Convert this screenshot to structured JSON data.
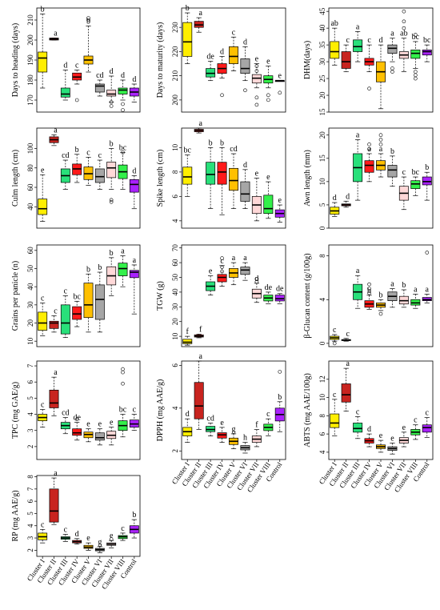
{
  "clusters": [
    "Cluster I",
    "Cluster II",
    "Cluster III",
    "Cluster IV",
    "Cluster V",
    "Cluster VI",
    "Cluster VII",
    "Cluster VIII",
    "Control"
  ],
  "colors": [
    "#ffee00",
    "#c8241f",
    "#28e07a",
    "#ff1a1a",
    "#ffc000",
    "#a6a6a6",
    "#ffd8d8",
    "#33f04a",
    "#aa22ff"
  ],
  "chart_data": [
    {
      "type": "box",
      "ylabel": "Days to heading (days)",
      "ylim": [
        164,
        216
      ],
      "ticks": [
        170,
        180,
        190,
        200,
        210
      ],
      "letters": [
        "b",
        "a",
        "d",
        "c",
        "b",
        "cd",
        "d",
        "d",
        "d"
      ],
      "boxes": [
        [
          176,
          184,
          191,
          194,
          213
        ],
        [
          200,
          200,
          200.5,
          201,
          201
        ],
        [
          170,
          171.5,
          173,
          176,
          185
        ],
        [
          178,
          180,
          181.5,
          183.5,
          185
        ],
        [
          184,
          188,
          190,
          192,
          207
        ],
        [
          172,
          174,
          177,
          178,
          180
        ],
        [
          169,
          172,
          173,
          175,
          182
        ],
        [
          170,
          173,
          175,
          176,
          180
        ],
        [
          169,
          172,
          174,
          176,
          178
        ]
      ],
      "outliers": [
        [],
        [],
        [],
        [
          170
        ],
        [
          210,
          211
        ],
        [],
        [
          167,
          169
        ],
        [
          165,
          168
        ],
        []
      ]
    },
    {
      "type": "box",
      "ylabel": "Days to maturity (days)",
      "ylim": [
        195,
        238
      ],
      "ticks": [
        200,
        210,
        220,
        230
      ],
      "letters": [
        "b",
        "a",
        "de",
        "d",
        "c",
        "d",
        "e",
        "e",
        "e"
      ],
      "boxes": [
        [
          215,
          218,
          224,
          232,
          236
        ],
        [
          228,
          230,
          231,
          232.5,
          234
        ],
        [
          208,
          209.5,
          211,
          213,
          216
        ],
        [
          209,
          211,
          213,
          215,
          218
        ],
        [
          212,
          215,
          218,
          222,
          226
        ],
        [
          208,
          211,
          213,
          217,
          222
        ],
        [
          205,
          207,
          209,
          210.5,
          215
        ],
        [
          205,
          207,
          208.5,
          210,
          214
        ],
        [
          208,
          208,
          208,
          208,
          208
        ]
      ],
      "outliers": [
        [],
        [],
        [],
        [
          202
        ],
        [],
        [
          204
        ],
        [
          198,
          201,
          212,
          214
        ],
        [
          200,
          202
        ],
        [
          203
        ]
      ]
    },
    {
      "type": "box",
      "ylabel": "DHM(days)",
      "ylim": [
        15,
        46
      ],
      "ticks": [
        15,
        20,
        25,
        30,
        35,
        40,
        45
      ],
      "letters": [
        "ab",
        "c",
        "a",
        "c",
        "d",
        "a",
        "ab",
        "bc",
        "bc"
      ],
      "boxes": [
        [
          29,
          31,
          33,
          36,
          40
        ],
        [
          27,
          28,
          30,
          33,
          35
        ],
        [
          30,
          33,
          34.5,
          36.5,
          39
        ],
        [
          27,
          29,
          30,
          31,
          35
        ],
        [
          16,
          24,
          27,
          30,
          35
        ],
        [
          30,
          32.5,
          34,
          35,
          37
        ],
        [
          27,
          31,
          32,
          33,
          37
        ],
        [
          28,
          31,
          32.5,
          33.5,
          36
        ],
        [
          30,
          32,
          33,
          33.5,
          35
        ]
      ],
      "outliers": [
        [],
        [],
        [],
        [
          22
        ],
        [],
        [
          27,
          28
        ],
        [
          40,
          42,
          45
        ],
        [
          25,
          26,
          27,
          38
        ],
        []
      ]
    },
    {
      "type": "box",
      "ylabel": "Culm length (cm)",
      "ylim": [
        18,
        121
      ],
      "ticks": [
        40,
        60,
        80,
        100
      ],
      "letters": [
        "e",
        "a",
        "cd",
        "b",
        "c",
        "c",
        "b",
        "bc",
        "d"
      ],
      "boxes": [
        [
          25,
          32,
          38,
          48,
          73
        ],
        [
          103,
          106,
          109,
          112,
          114
        ],
        [
          58,
          65,
          72,
          79,
          88
        ],
        [
          65,
          73,
          79,
          84,
          94
        ],
        [
          62,
          68,
          74,
          81,
          91
        ],
        [
          58,
          65,
          71,
          79,
          88
        ],
        [
          58,
          70,
          80,
          86,
          100
        ],
        [
          58,
          69,
          76,
          83,
          96
        ],
        [
          38,
          55,
          63,
          68,
          72
        ]
      ],
      "outliers": [
        [],
        [],
        [],
        [],
        [],
        [],
        [
          45,
          47
        ],
        [
          96
        ],
        []
      ]
    },
    {
      "type": "box",
      "ylabel": "Spike length (cm)",
      "ylim": [
        3.4,
        11.6
      ],
      "ticks": [
        4,
        6,
        8,
        10
      ],
      "letters": [
        "bc",
        "a",
        "b",
        "b",
        "cd",
        "d",
        "e",
        "e",
        "e"
      ],
      "boxes": [
        [
          6,
          7,
          7.6,
          8.4,
          9.4
        ],
        [
          11.2,
          11.3,
          11.4,
          11.5,
          11.6
        ],
        [
          5,
          7,
          7.8,
          8.8,
          10
        ],
        [
          4.5,
          7,
          8,
          8.8,
          10
        ],
        [
          5,
          6.5,
          7.3,
          8.3,
          9.5
        ],
        [
          5,
          5.6,
          6.2,
          7.2,
          8.2
        ],
        [
          4,
          4.6,
          5.3,
          6,
          7.5
        ],
        [
          4.2,
          4.6,
          5,
          6.1,
          7.2
        ],
        [
          3.9,
          4.3,
          4.6,
          4.9,
          5.3
        ]
      ],
      "outliers": [
        [],
        [],
        [],
        [],
        [],
        [],
        [],
        [],
        []
      ]
    },
    {
      "type": "box",
      "ylabel": "Awn length (mm)",
      "ylim": [
        0,
        21.5
      ],
      "ticks": [
        0,
        5,
        10,
        15,
        20
      ],
      "letters": [
        "d",
        "d",
        "a",
        "a",
        "a",
        "b",
        "c",
        "bc",
        "b"
      ],
      "boxes": [
        [
          2.5,
          3,
          3.7,
          4.5,
          5.5
        ],
        [
          4.5,
          4.8,
          5,
          5.2,
          5.8
        ],
        [
          6,
          10,
          13,
          16,
          19
        ],
        [
          10,
          12,
          13.5,
          14.5,
          16
        ],
        [
          11,
          12.5,
          13.5,
          14.5,
          16
        ],
        [
          9,
          11,
          12.5,
          13.5,
          15.5
        ],
        [
          4,
          6,
          7.5,
          9,
          11
        ],
        [
          7,
          8.5,
          9.5,
          10.2,
          11
        ],
        [
          6,
          9.3,
          10,
          11,
          12
        ]
      ],
      "outliers": [
        [],
        [],
        [],
        [
          17,
          18
        ],
        [
          18,
          19,
          20
        ],
        [],
        [],
        [],
        []
      ]
    },
    {
      "type": "box",
      "ylabel": "Grains per panicle (n)",
      "ylim": [
        7,
        63
      ],
      "ticks": [
        10,
        20,
        30,
        40,
        50,
        60
      ],
      "letters": [
        "c",
        "c",
        "c",
        "bc",
        "b",
        "b",
        "b",
        "a",
        "a"
      ],
      "boxes": [
        [
          13,
          16,
          20,
          26,
          31
        ],
        [
          15,
          17,
          20,
          21,
          24
        ],
        [
          12,
          14,
          20,
          30,
          35
        ],
        [
          18,
          22,
          25,
          29,
          32
        ],
        [
          15,
          23,
          30,
          42,
          47
        ],
        [
          15,
          22,
          33,
          41,
          48
        ],
        [
          35,
          41,
          46,
          51,
          56
        ],
        [
          40,
          46,
          50,
          53,
          57
        ],
        [
          25,
          45,
          48,
          49,
          52
        ]
      ],
      "outliers": [
        [],
        [],
        [],
        [],
        [],
        [],
        [],
        [],
        []
      ]
    },
    {
      "type": "box",
      "ylabel": "TGW (g)",
      "ylim": [
        3,
        72
      ],
      "ticks": [
        10,
        20,
        30,
        40,
        50,
        60,
        70
      ],
      "letters": [
        "f",
        "f",
        "e",
        "c",
        "a",
        "a",
        "d",
        "de",
        "de"
      ],
      "boxes": [
        [
          4,
          5,
          6,
          8,
          10
        ],
        [
          9,
          9.5,
          10.2,
          11,
          11.5
        ],
        [
          38,
          41,
          44,
          47,
          51
        ],
        [
          44,
          47,
          50,
          52,
          58
        ],
        [
          45,
          50,
          53,
          56,
          60
        ],
        [
          48,
          52,
          55,
          57,
          60
        ],
        [
          33,
          36,
          39,
          42,
          46
        ],
        [
          32,
          34,
          36,
          38,
          40
        ],
        [
          32,
          34,
          35.5,
          38,
          39
        ]
      ],
      "outliers": [
        [],
        [],
        [],
        [
          54,
          57,
          63
        ],
        [],
        [],
        [
          47,
          49
        ],
        [],
        []
      ]
    },
    {
      "type": "box",
      "ylabel": "β-Glucan content (g/100g)",
      "ylim": [
        -0.3,
        9
      ],
      "ticks": [
        0,
        4,
        8
      ],
      "letters": [
        "c",
        "c",
        "a",
        "b",
        "b",
        "a",
        "b",
        "a",
        "a"
      ],
      "boxes": [
        [
          0.2,
          0.35,
          0.5,
          0.65,
          0.8
        ],
        [
          0.2,
          0.25,
          0.3,
          0.35,
          0.45
        ],
        [
          3.2,
          4,
          4.7,
          5.4,
          6.2
        ],
        [
          3.1,
          3.3,
          3.6,
          3.9,
          4.4
        ],
        [
          3.0,
          3.3,
          3.5,
          3.7,
          4.0
        ],
        [
          3.3,
          3.9,
          4.3,
          4.7,
          5.0
        ],
        [
          3.3,
          3.6,
          3.9,
          4.3,
          4.9
        ],
        [
          3.2,
          3.5,
          3.7,
          4.0,
          4.5
        ],
        [
          3.7,
          3.9,
          4.0,
          4.2,
          4.5
        ]
      ],
      "outliers": [
        [
          0
        ],
        [],
        [],
        [
          4.6,
          5.0,
          5.4
        ],
        [
          2.7
        ],
        [],
        [],
        [],
        [
          8.3
        ]
      ]
    },
    {
      "type": "box",
      "ylabel": "TPC (mg GAE/g)",
      "ylim": [
        1.2,
        7.3
      ],
      "ticks": [
        2,
        3,
        4,
        5,
        6,
        7
      ],
      "letters": [
        "c",
        "a",
        "cd",
        "de",
        "e",
        "e",
        "e",
        "bc",
        "c"
      ],
      "boxes": [
        [
          3.2,
          3.6,
          3.8,
          4.0,
          4.3
        ],
        [
          3.9,
          4.4,
          4.7,
          5.5,
          6.3
        ],
        [
          2.8,
          3.1,
          3.3,
          3.5,
          3.8
        ],
        [
          2.4,
          2.7,
          2.85,
          3.1,
          3.5
        ],
        [
          2.3,
          2.55,
          2.75,
          2.9,
          3.1
        ],
        [
          2.1,
          2.4,
          2.55,
          2.85,
          3.1
        ],
        [
          2.1,
          2.5,
          2.7,
          2.95,
          3.2
        ],
        [
          2.6,
          3.0,
          3.3,
          3.6,
          4.0
        ],
        [
          3.0,
          3.2,
          3.4,
          3.65,
          4.0
        ]
      ],
      "outliers": [
        [],
        [],
        [],
        [
          3.7
        ],
        [],
        [],
        [],
        [
          5.9,
          6.6,
          6.8
        ],
        []
      ]
    },
    {
      "type": "box",
      "ylabel": "DPPH (mg AAE/g)",
      "ylim": [
        1.6,
        6.2
      ],
      "ticks": [
        2,
        4,
        6
      ],
      "letters": [
        "d",
        "a",
        "cd",
        "e",
        "g",
        "h",
        "f",
        "c",
        "b"
      ],
      "boxes": [
        [
          2.4,
          2.7,
          2.9,
          3.1,
          3.5
        ],
        [
          3.0,
          3.5,
          4.1,
          5.2,
          6.2
        ],
        [
          2.7,
          2.9,
          3.0,
          3.15,
          3.3
        ],
        [
          2.4,
          2.6,
          2.75,
          2.85,
          3.1
        ],
        [
          2.1,
          2.3,
          2.45,
          2.6,
          2.8
        ],
        [
          1.9,
          2.05,
          2.15,
          2.25,
          2.4
        ],
        [
          2.2,
          2.4,
          2.55,
          2.7,
          3.0
        ],
        [
          2.7,
          2.95,
          3.1,
          3.25,
          3.5
        ],
        [
          2.9,
          3.4,
          3.7,
          4.0,
          4.3
        ]
      ],
      "outliers": [
        [],
        [],
        [],
        [],
        [],
        [],
        [],
        [],
        [
          5.7
        ]
      ]
    },
    {
      "type": "box",
      "ylabel": "ABTS (mg AAE/100g)",
      "ylim": [
        3.2,
        14
      ],
      "ticks": [
        4,
        6,
        8,
        10,
        12
      ],
      "letters": [
        "c",
        "a",
        "c",
        "d",
        "e",
        "e",
        "e",
        "c",
        "c"
      ],
      "boxes": [
        [
          5.8,
          6.7,
          7.2,
          8.2,
          9.8
        ],
        [
          8.5,
          9.5,
          10.3,
          11.5,
          13.2
        ],
        [
          5.5,
          6.2,
          6.6,
          7.2,
          7.9
        ],
        [
          4.6,
          5.0,
          5.25,
          5.5,
          6.0
        ],
        [
          4.0,
          4.4,
          4.6,
          4.8,
          5.3
        ],
        [
          3.8,
          4.2,
          4.4,
          4.6,
          5.0
        ],
        [
          4.6,
          5.0,
          5.3,
          5.6,
          6.2
        ],
        [
          5.4,
          5.9,
          6.2,
          6.5,
          7.0
        ],
        [
          5.6,
          6.2,
          6.7,
          7.0,
          7.8
        ]
      ],
      "outliers": [
        [],
        [],
        [],
        [],
        [],
        [],
        [],
        [],
        []
      ]
    },
    {
      "type": "box",
      "ylabel": "RP (mg AAE/g)",
      "ylim": [
        1.5,
        8.1
      ],
      "ticks": [
        2,
        3,
        4,
        5,
        6,
        7,
        8
      ],
      "letters": [
        "c",
        "a",
        "c",
        "d",
        "e",
        "g",
        "e",
        "c",
        "b"
      ],
      "boxes": [
        [
          2.6,
          2.85,
          3.1,
          3.4,
          3.7
        ],
        [
          4.1,
          4.3,
          5.2,
          7.0,
          7.9
        ],
        [
          2.7,
          2.9,
          3.0,
          3.1,
          3.3
        ],
        [
          2.5,
          2.6,
          2.7,
          2.8,
          2.95
        ],
        [
          2.0,
          2.15,
          2.25,
          2.4,
          2.6
        ],
        [
          1.8,
          1.95,
          2.05,
          2.15,
          2.3
        ],
        [
          2.2,
          2.4,
          2.5,
          2.6,
          2.8
        ],
        [
          2.8,
          2.95,
          3.1,
          3.2,
          3.4
        ],
        [
          3.0,
          3.4,
          3.7,
          4.0,
          4.5
        ]
      ],
      "outliers": [
        [],
        [],
        [],
        [],
        [],
        [],
        [
          2.9
        ],
        [],
        []
      ]
    }
  ]
}
